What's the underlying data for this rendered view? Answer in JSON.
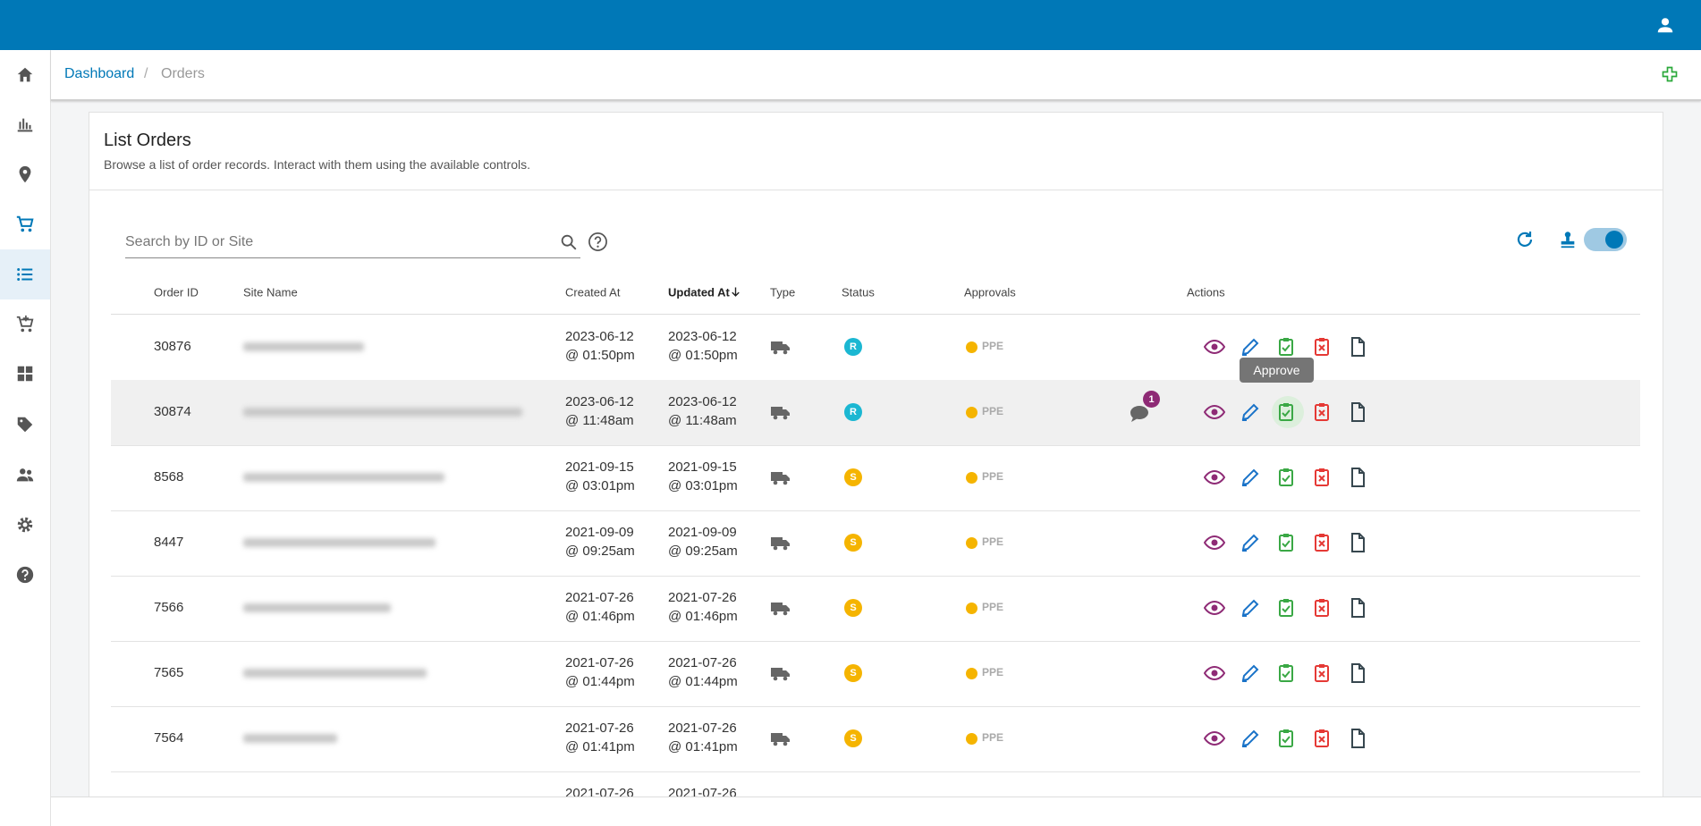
{
  "breadcrumb": {
    "home": "Dashboard",
    "current": "Orders"
  },
  "page": {
    "title": "List Orders",
    "subtitle": "Browse a list of order records. Interact with them using the available controls.",
    "search_placeholder": "Search by ID or Site"
  },
  "table": {
    "headers": [
      "Order ID",
      "Site Name",
      "Created At",
      "Updated At",
      "Type",
      "Status",
      "Approvals",
      "Actions"
    ],
    "rows": [
      {
        "order_id": "30876",
        "created_date": "2023-06-12",
        "created_time": "@ 01:50pm",
        "updated_date": "2023-06-12",
        "updated_time": "@ 01:50pm",
        "status": "R",
        "approval": "PPE"
      },
      {
        "order_id": "30874",
        "created_date": "2023-06-12",
        "created_time": "@ 11:48am",
        "updated_date": "2023-06-12",
        "updated_time": "@ 11:48am",
        "status": "R",
        "approval": "PPE",
        "comments": "1"
      },
      {
        "order_id": "8568",
        "created_date": "2021-09-15",
        "created_time": "@ 03:01pm",
        "updated_date": "2021-09-15",
        "updated_time": "@ 03:01pm",
        "status": "S",
        "approval": "PPE"
      },
      {
        "order_id": "8447",
        "created_date": "2021-09-09",
        "created_time": "@ 09:25am",
        "updated_date": "2021-09-09",
        "updated_time": "@ 09:25am",
        "status": "S",
        "approval": "PPE"
      },
      {
        "order_id": "7566",
        "created_date": "2021-07-26",
        "created_time": "@ 01:46pm",
        "updated_date": "2021-07-26",
        "updated_time": "@ 01:46pm",
        "status": "S",
        "approval": "PPE"
      },
      {
        "order_id": "7565",
        "created_date": "2021-07-26",
        "created_time": "@ 01:44pm",
        "updated_date": "2021-07-26",
        "updated_time": "@ 01:44pm",
        "status": "S",
        "approval": "PPE"
      },
      {
        "order_id": "7564",
        "created_date": "2021-07-26",
        "created_time": "@ 01:41pm",
        "updated_date": "2021-07-26",
        "updated_time": "@ 01:41pm",
        "status": "S",
        "approval": "PPE"
      },
      {
        "created_date": "2021-07-26",
        "updated_date": "2021-07-26"
      }
    ]
  },
  "tooltip": "Approve"
}
